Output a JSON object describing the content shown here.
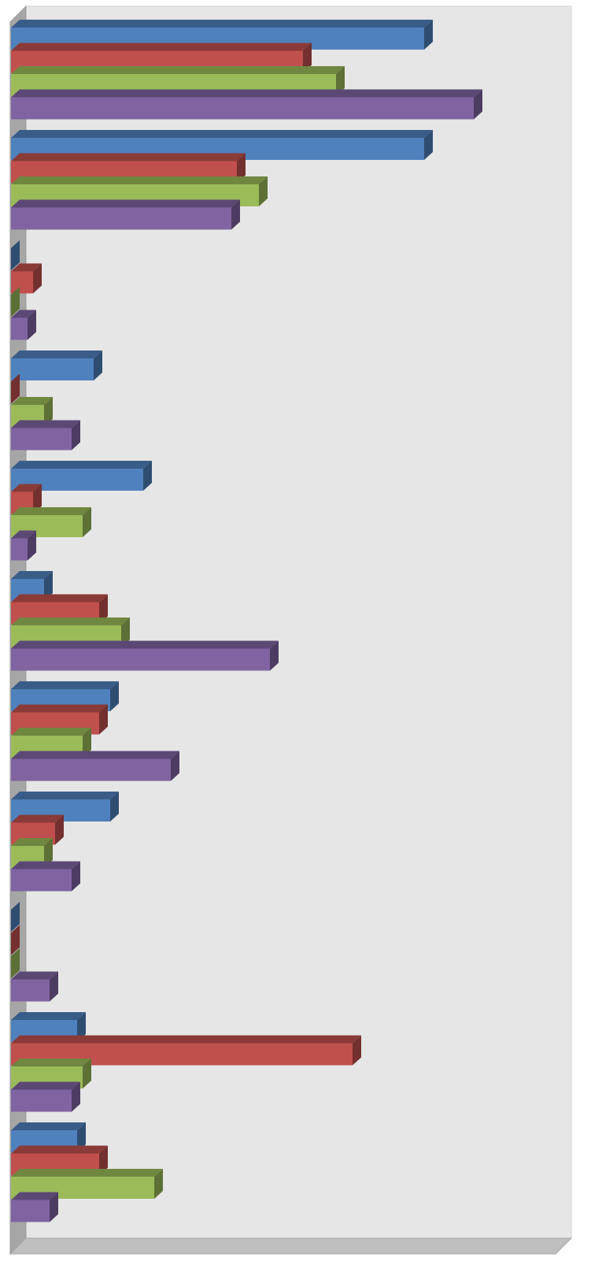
{
  "chart_data": {
    "type": "bar",
    "orientation": "horizontal",
    "style": "3d",
    "title": "",
    "xlabel": "",
    "ylabel": "",
    "grid": false,
    "legend": "none",
    "xlim": [
      0,
      100
    ],
    "categories": [
      "",
      "",
      "",
      "",
      "",
      "",
      "",
      "",
      "",
      "",
      ""
    ],
    "series": [
      {
        "color": "#4F81BD",
        "values": [
          75,
          75,
          0,
          15,
          24,
          6,
          18,
          18,
          0,
          12,
          12
        ]
      },
      {
        "color": "#C0504D",
        "values": [
          53,
          41,
          4,
          0,
          4,
          16,
          16,
          8,
          0,
          62,
          16
        ]
      },
      {
        "color": "#9BBB59",
        "values": [
          59,
          45,
          0,
          6,
          13,
          20,
          13,
          6,
          0,
          13,
          26
        ]
      },
      {
        "color": "#8064A2",
        "values": [
          84,
          40,
          3,
          11,
          3,
          47,
          29,
          11,
          7,
          11,
          7
        ]
      }
    ]
  }
}
